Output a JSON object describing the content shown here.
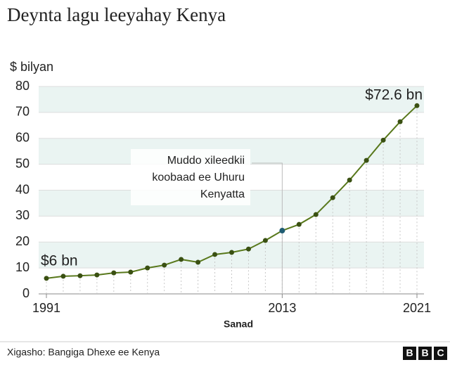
{
  "chart_data": {
    "type": "line",
    "title": "Deynta lagu leeyahay Kenya",
    "y_label": "$ bilyan",
    "x_label": "Sanad",
    "categories": [
      "1991",
      null,
      null,
      null,
      null,
      null,
      null,
      null,
      null,
      null,
      null,
      null,
      null,
      null,
      "2013",
      null,
      null,
      null,
      null,
      null,
      null,
      null,
      "2021"
    ],
    "series": [
      {
        "name": "Deynta",
        "color": "#58781b",
        "highlight_index": 14,
        "highlight_color": "#1f5c73",
        "values": [
          6,
          6.8,
          7.0,
          7.3,
          8.1,
          8.4,
          10.0,
          11.1,
          13.3,
          12.2,
          15.2,
          16.0,
          17.3,
          20.6,
          24.4,
          26.8,
          30.6,
          37.1,
          43.9,
          51.5,
          59.3,
          66.4,
          72.6
        ],
        "value_labels": [
          "$6 bn",
          null,
          null,
          null,
          null,
          null,
          null,
          null,
          null,
          null,
          null,
          null,
          null,
          null,
          null,
          null,
          null,
          null,
          null,
          null,
          null,
          null,
          "$72.6 bn"
        ]
      }
    ],
    "ylim": [
      0,
      80
    ],
    "yticks": [
      0,
      10,
      20,
      30,
      40,
      50,
      60,
      70,
      80
    ],
    "annotation": {
      "index": 14,
      "lines": [
        "Muddo xileedkii",
        "koobaad ee Uhuru",
        "Kenyatta"
      ]
    },
    "source": "Xigasho: Bangiga Dhexe ee Kenya",
    "logo": [
      "B",
      "B",
      "C"
    ]
  }
}
